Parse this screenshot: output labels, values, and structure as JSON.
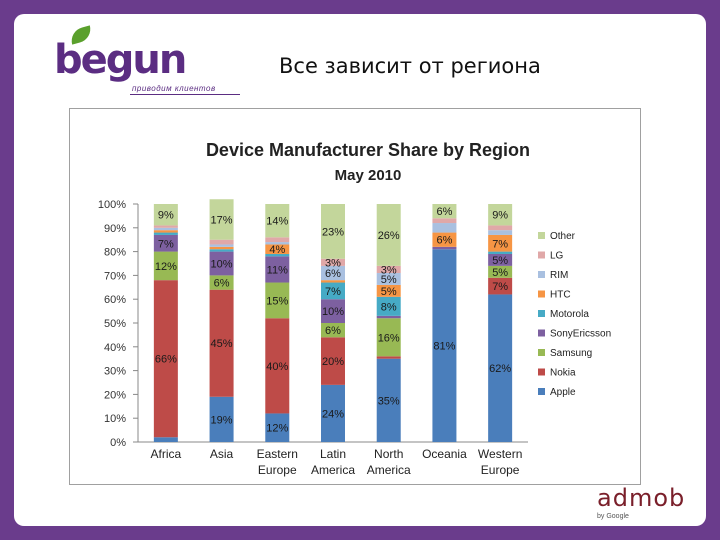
{
  "slide": {
    "title": "Все зависит от региона",
    "logo": {
      "word": "begun",
      "tagline": "приводим клиентов"
    },
    "corner_logo": {
      "word": "admob",
      "sub": "by Google"
    }
  },
  "colors": {
    "background": "#6a3c8c",
    "Apple": "#4a7ebb",
    "Nokia": "#be4b48",
    "Samsung": "#98b954",
    "SonyEricsson": "#7d60a0",
    "Motorola": "#46aac5",
    "HTC": "#f69544",
    "RIM": "#a9c0e0",
    "LG": "#e0a8a8",
    "Other": "#c3d69b"
  },
  "chart_data": {
    "type": "bar",
    "stacked": true,
    "title": "Device Manufacturer Share by Region",
    "subtitle": "May 2010",
    "categories": [
      "Africa",
      "Asia",
      "Eastern Europe",
      "Latin America",
      "North America",
      "Oceania",
      "Western Europe"
    ],
    "category_lines": [
      [
        "Africa"
      ],
      [
        "Asia"
      ],
      [
        "Eastern",
        "Europe"
      ],
      [
        "Latin",
        "America"
      ],
      [
        "North",
        "America"
      ],
      [
        "Oceania"
      ],
      [
        "Western",
        "Europe"
      ]
    ],
    "ylim": [
      0,
      100
    ],
    "yticks": [
      "0%",
      "10%",
      "20%",
      "30%",
      "40%",
      "50%",
      "60%",
      "70%",
      "80%",
      "90%",
      "100%"
    ],
    "grid": false,
    "legend": "right",
    "series": [
      {
        "name": "Apple",
        "values": [
          2,
          19,
          12,
          24,
          35,
          81,
          62
        ],
        "labels": [
          "",
          "19%",
          "12%",
          "24%",
          "35%",
          "81%",
          "62%"
        ]
      },
      {
        "name": "Nokia",
        "values": [
          66,
          45,
          40,
          20,
          1,
          0,
          7
        ],
        "labels": [
          "66%",
          "45%",
          "40%",
          "20%",
          "",
          "",
          "7%"
        ]
      },
      {
        "name": "Samsung",
        "values": [
          12,
          6,
          15,
          6,
          16,
          0,
          5
        ],
        "labels": [
          "12%",
          "6%",
          "15%",
          "6%",
          "16%",
          "",
          "5%"
        ]
      },
      {
        "name": "SonyEricsson",
        "values": [
          7,
          10,
          11,
          10,
          1,
          1,
          5
        ],
        "labels": [
          "7%",
          "10%",
          "11%",
          "10%",
          "",
          "",
          "5%"
        ]
      },
      {
        "name": "Motorola",
        "values": [
          1,
          1,
          1,
          7,
          8,
          0,
          1
        ],
        "labels": [
          "",
          "",
          "",
          "7%",
          "8%",
          "",
          ""
        ]
      },
      {
        "name": "HTC",
        "values": [
          1,
          1,
          4,
          1,
          5,
          6,
          7
        ],
        "labels": [
          "",
          "",
          "4%",
          "",
          "5%",
          "6%",
          "7%"
        ]
      },
      {
        "name": "RIM",
        "values": [
          1,
          1,
          1,
          6,
          5,
          4,
          2
        ],
        "labels": [
          "",
          "",
          "",
          "6%",
          "5%",
          "",
          ""
        ]
      },
      {
        "name": "LG",
        "values": [
          1,
          2,
          2,
          3,
          3,
          2,
          2
        ],
        "labels": [
          "",
          "",
          "",
          "3%",
          "3%",
          "",
          ""
        ]
      },
      {
        "name": "Other",
        "values": [
          9,
          17,
          14,
          23,
          26,
          6,
          9
        ],
        "labels": [
          "9%",
          "17%",
          "14%",
          "23%",
          "26%",
          "6%",
          "9%"
        ]
      }
    ]
  }
}
